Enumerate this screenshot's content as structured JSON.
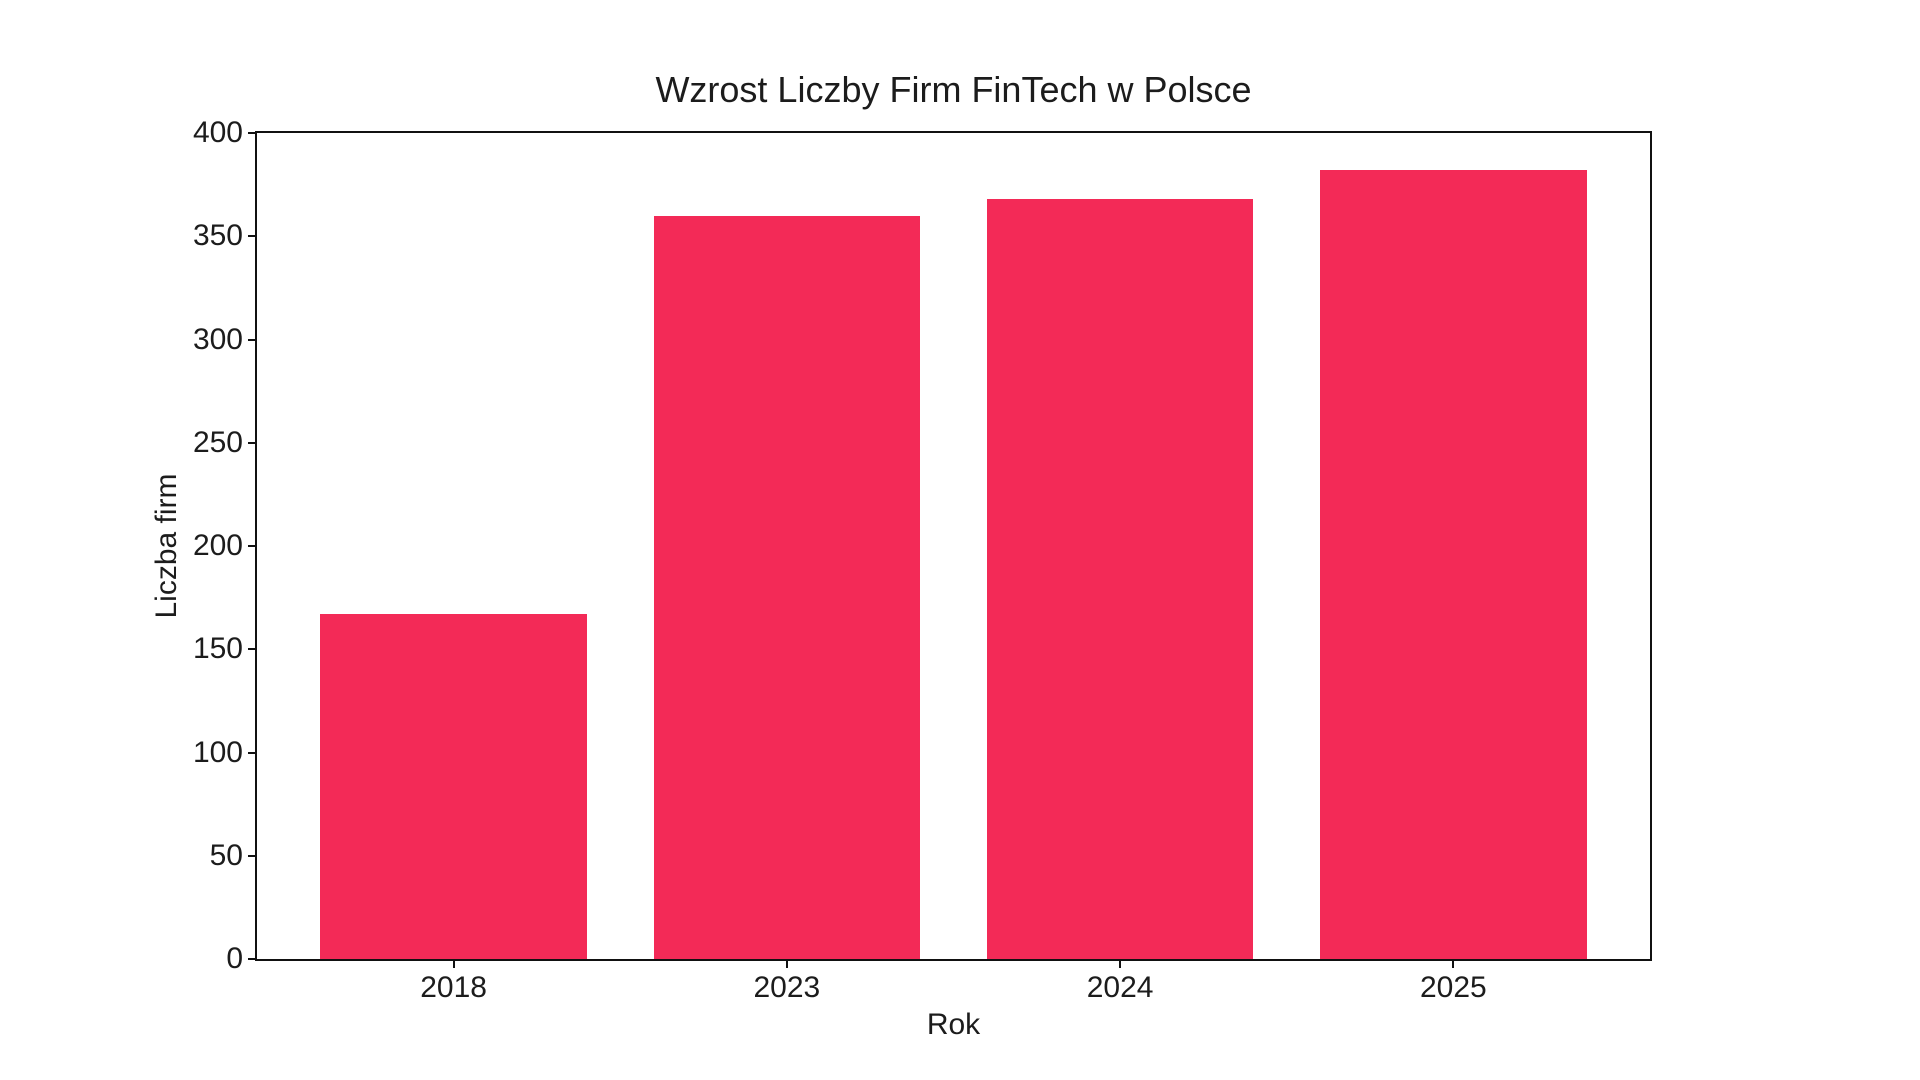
{
  "chart_data": {
    "type": "bar",
    "title": "Wzrost Liczby Firm FinTech w Polsce",
    "xlabel": "Rok",
    "ylabel": "Liczba firm",
    "categories": [
      "2018",
      "2023",
      "2024",
      "2025"
    ],
    "values": [
      167,
      360,
      368,
      382
    ],
    "ylim": [
      0,
      400
    ],
    "yticks": [
      0,
      50,
      100,
      150,
      200,
      250,
      300,
      350,
      400
    ],
    "grid": false,
    "legend": null,
    "colors": {
      "bar": "#F32A57",
      "axis": "#111111",
      "text": "#1C1C1C",
      "background": "#FFFFFF"
    }
  }
}
